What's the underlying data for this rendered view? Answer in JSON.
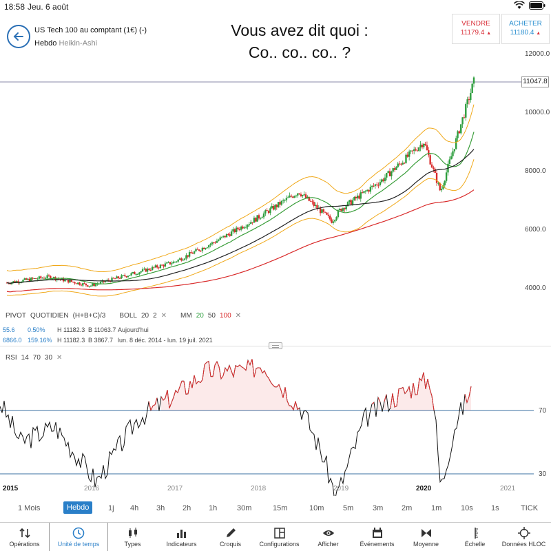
{
  "status": {
    "time": "18:58",
    "date": "Jeu. 6 août"
  },
  "header": {
    "instrument": "US Tech 100 au comptant (1€) (-)",
    "period": "Hebdo",
    "chart_style": "Heikin-Ashi",
    "headline_line1": "Vous avez dit quoi :",
    "headline_line2": "Co.. co.. co..  ?"
  },
  "quotes": {
    "sell_label": "VENDRE",
    "sell_price": "11179.4",
    "buy_label": "ACHETER",
    "buy_price": "11180.4"
  },
  "price_axis": [
    "12000.0",
    "10000.0",
    "8000.0",
    "6000.0",
    "4000.0"
  ],
  "last_price": "11047.8",
  "legend": {
    "pivot": "PIVOT",
    "pivot_type": "QUOTIDIEN",
    "pivot_formula": "(H+B+C)/3",
    "boll": "BOLL",
    "boll_p1": "20",
    "boll_p2": "2",
    "mm": "MM",
    "mm1": "20",
    "mm2": "50",
    "mm3": "100"
  },
  "stats": {
    "row1_a": "55.6",
    "row1_b": "0.50%",
    "row1_h": "H 11182.3",
    "row1_l": "B 11063.7",
    "row1_period": "Aujourd'hui",
    "row2_a": "6866.0",
    "row2_b": "159.16%",
    "row2_h": "H 11182.3",
    "row2_l": "B 3867.7",
    "row2_period": "lun. 8 déc. 2014 - lun. 19 juil. 2021"
  },
  "rsi": {
    "label": "RSI",
    "p1": "14",
    "p2": "70",
    "p3": "30",
    "level_high": "70",
    "level_low": "30"
  },
  "years": [
    "2015",
    "2016",
    "2017",
    "2018",
    "2019",
    "2020",
    "2021"
  ],
  "timeframes": [
    "1 Mois",
    "Hebdo",
    "1j",
    "4h",
    "3h",
    "2h",
    "1h",
    "30m",
    "15m",
    "10m",
    "5m",
    "3m",
    "2m",
    "1m",
    "10s",
    "1s",
    "TICK"
  ],
  "toolbar": [
    {
      "label": "Opérations",
      "icon": "arrows-updown-icon"
    },
    {
      "label": "Unité de temps",
      "icon": "clock-icon"
    },
    {
      "label": "Types",
      "icon": "candles-icon"
    },
    {
      "label": "Indicateurs",
      "icon": "bars-icon"
    },
    {
      "label": "Croquis",
      "icon": "pencil-icon"
    },
    {
      "label": "Configurations",
      "icon": "layout-icon"
    },
    {
      "label": "Afficher",
      "icon": "eye-icon"
    },
    {
      "label": "Événements",
      "icon": "calendar-icon"
    },
    {
      "label": "Moyenne",
      "icon": "bow-icon"
    },
    {
      "label": "Échelle",
      "icon": "scale-icon"
    },
    {
      "label": "Données HLOC",
      "icon": "crosshair-icon"
    }
  ],
  "chart_data": {
    "type": "candlestick",
    "x": [
      2015.0,
      2015.5,
      2016.0,
      2016.5,
      2017.0,
      2017.5,
      2018.0,
      2018.5,
      2018.9,
      2019.0,
      2019.5,
      2020.0,
      2020.2,
      2020.6
    ],
    "close": [
      4200,
      4400,
      4100,
      4500,
      4900,
      5600,
      6400,
      7300,
      6300,
      6700,
      7700,
      9000,
      7300,
      11047.8
    ],
    "ylim": [
      3500,
      12500
    ]
  }
}
